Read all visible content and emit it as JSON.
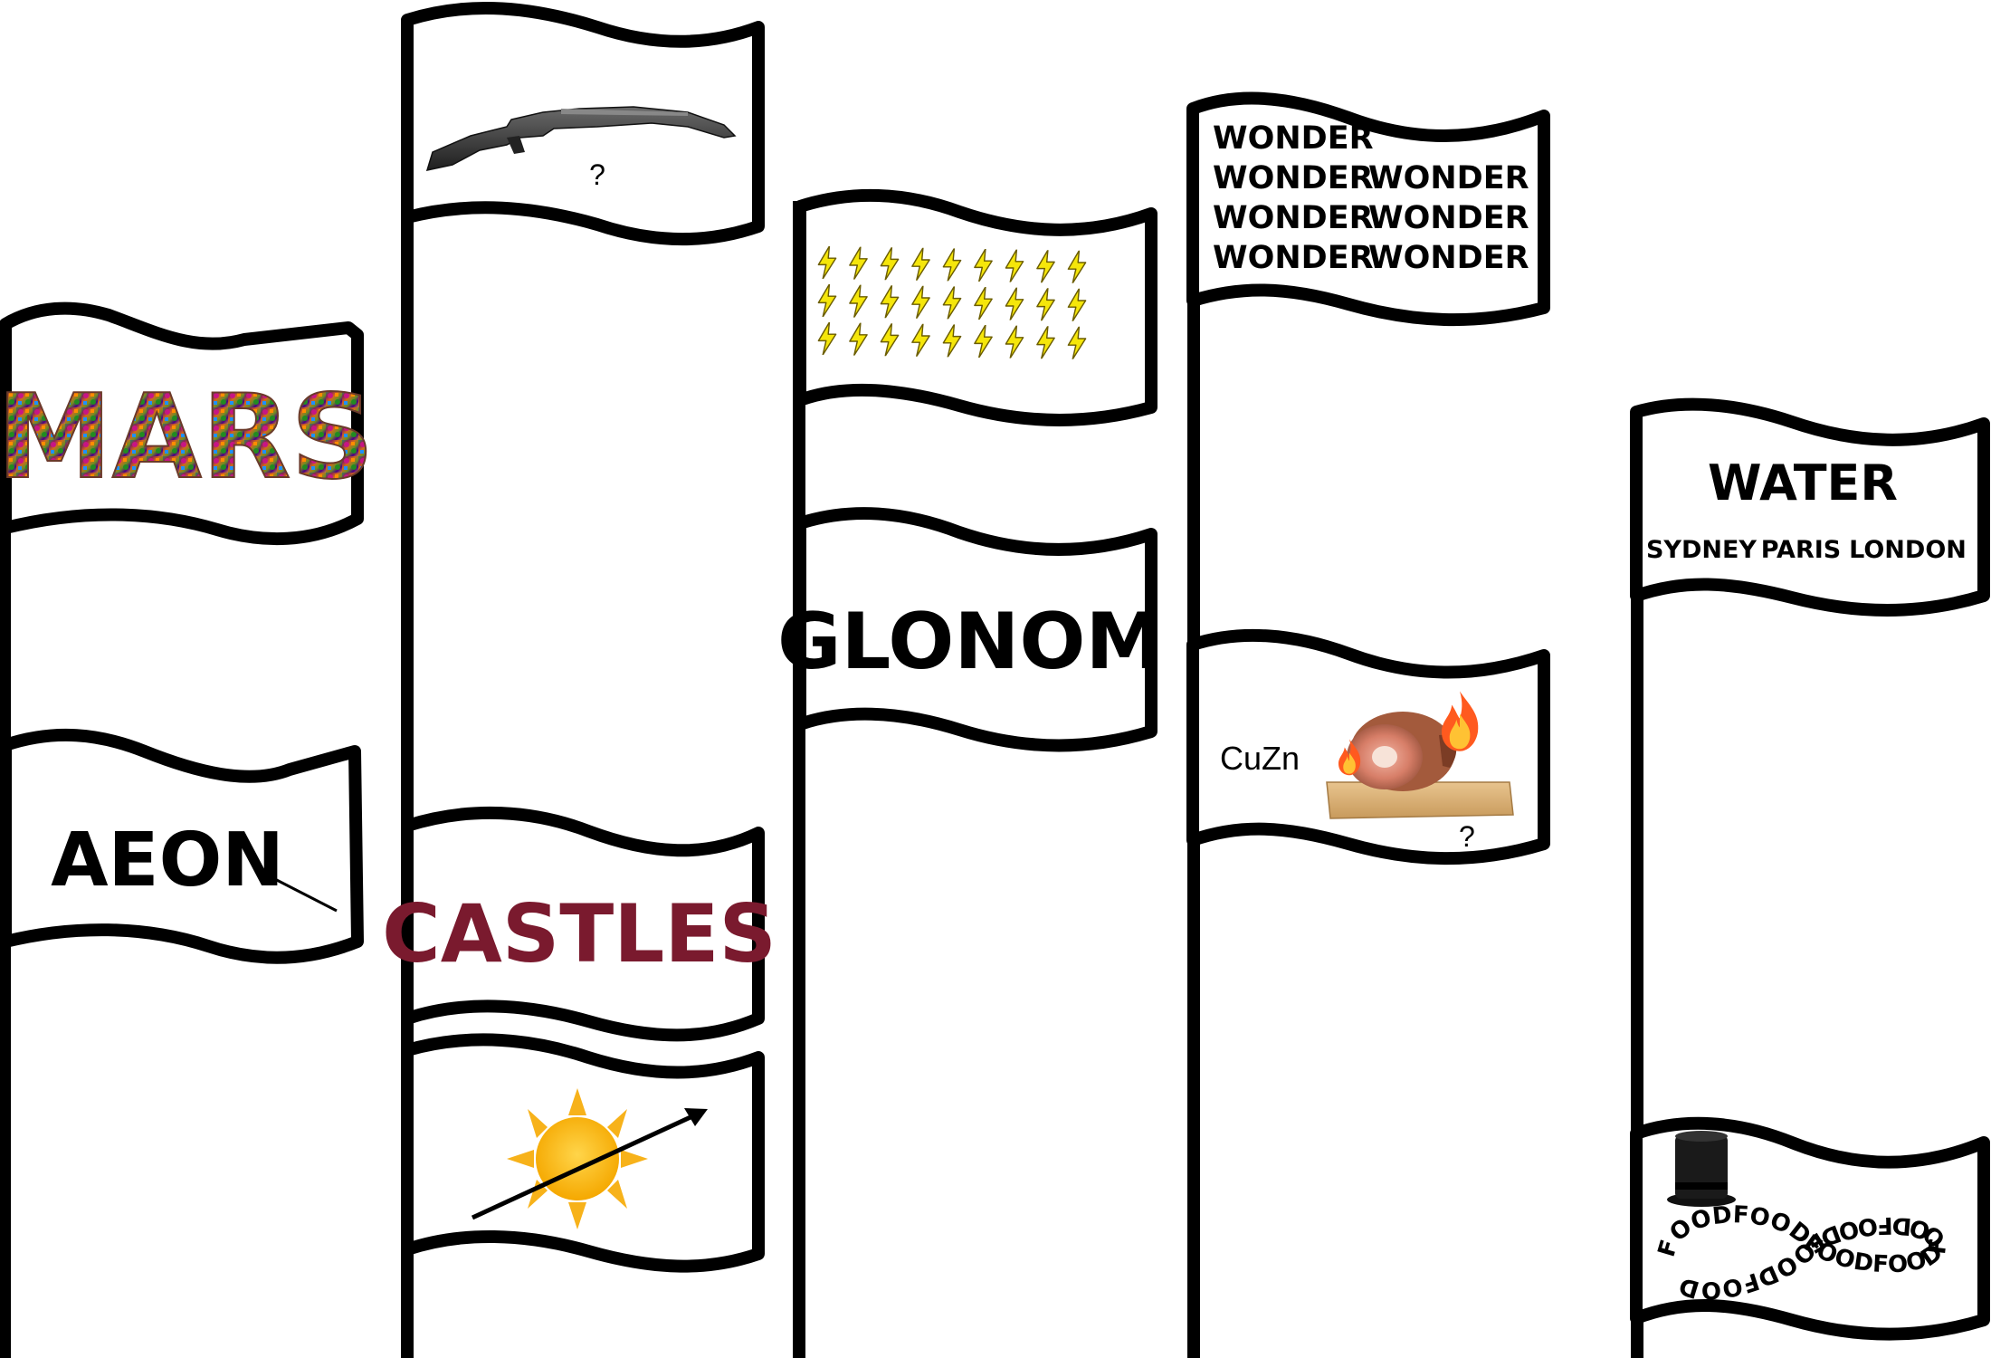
{
  "flags": {
    "mars": {
      "text": "MARS",
      "colors": [
        "#2e8b57",
        "#8b2252",
        "#d2691e",
        "#6b8e23",
        "#4b0082",
        "#cd853f"
      ]
    },
    "aeon": {
      "text": "AEON"
    },
    "rifle": {
      "question": "?",
      "icon": "shotgun-icon"
    },
    "castles": {
      "text": "CASTLES",
      "color": "#7a1a2e"
    },
    "sun": {
      "icon": "sun-icon",
      "arrow": "arrow-icon"
    },
    "lightning": {
      "icon": "lightning-bolt-icon",
      "rows": 3,
      "cols": 9,
      "color": "#f5e60a"
    },
    "glonom": {
      "text": "GLONOM"
    },
    "wonder": {
      "lines": [
        [
          "WONDER"
        ],
        [
          "WONDER",
          "WONDER"
        ],
        [
          "WONDER",
          "WONDER"
        ],
        [
          "WONDER",
          "WONDER"
        ]
      ]
    },
    "ham": {
      "formula": "CuZn",
      "question": "?",
      "icon": "roast-ham-icon",
      "fire": "fire-icon"
    },
    "water": {
      "title": "WATER",
      "cities": [
        "SYDNEY",
        "PARIS",
        "LONDON"
      ]
    },
    "food": {
      "word": "FOOD",
      "icon": "top-hat-icon"
    }
  }
}
